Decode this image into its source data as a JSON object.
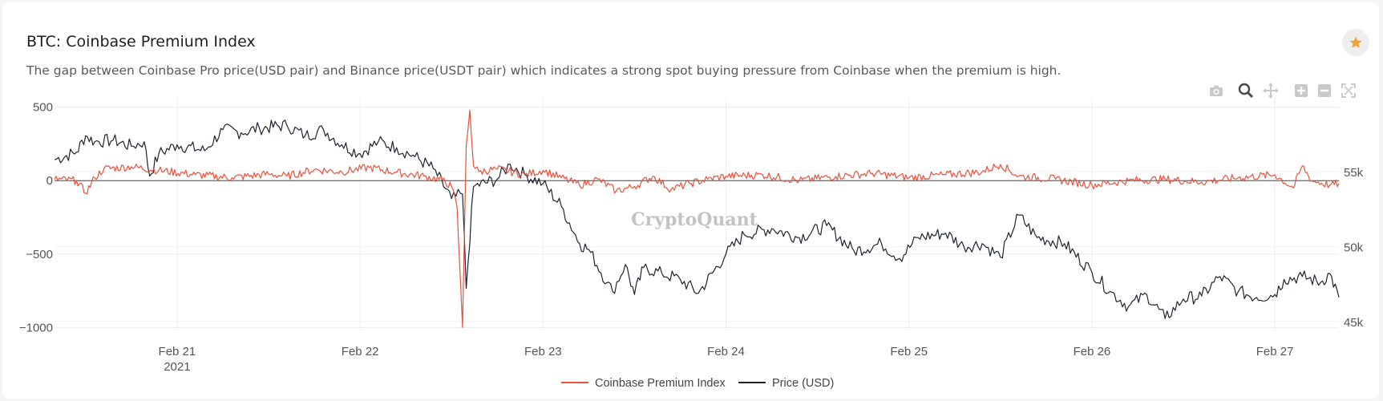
{
  "header": {
    "title": "BTC: Coinbase Premium Index",
    "subtitle": "The gap between Coinbase Pro price(USD pair) and Binance price(USDT pair) which indicates a strong spot buying pressure from Coinbase when the premium is high."
  },
  "icons": {
    "star": "star-icon",
    "toolbar": [
      "camera-icon",
      "zoom-icon",
      "pan-icon",
      "zoom-in-icon",
      "zoom-out-icon",
      "autoscale-icon"
    ]
  },
  "watermark": "CryptoQuant",
  "colors": {
    "premium": "#e5533c",
    "price": "#1c2430",
    "star": "#f0a23b"
  },
  "chart_data": {
    "type": "line",
    "x_axis": {
      "ticks": [
        "Feb 21",
        "Feb 22",
        "Feb 23",
        "Feb 24",
        "Feb 25",
        "Feb 26",
        "Feb 27"
      ],
      "year_label": "2021",
      "range": [
        20.33,
        27.35
      ]
    },
    "y_left": {
      "ticks": [
        "500",
        "0",
        "−500",
        "−1000"
      ],
      "tick_values": [
        500,
        0,
        -500,
        -1000
      ],
      "range": [
        -1020,
        520
      ]
    },
    "y_right": {
      "ticks": [
        "55k",
        "50k",
        "45k"
      ],
      "tick_values": [
        55000,
        50000,
        45000
      ],
      "range": [
        44400,
        59500
      ]
    },
    "grid": true,
    "legend_position": "bottom-center",
    "series": [
      {
        "name": "Coinbase Premium Index",
        "axis": "left",
        "x": [
          20.33,
          20.45,
          20.5,
          20.55,
          20.6,
          20.75,
          20.9,
          21.1,
          21.3,
          21.5,
          21.6,
          21.75,
          21.9,
          22.05,
          22.2,
          22.35,
          22.45,
          22.5,
          22.53,
          22.56,
          22.58,
          22.6,
          22.62,
          22.65,
          22.75,
          22.9,
          23.0,
          23.1,
          23.2,
          23.3,
          23.4,
          23.5,
          23.6,
          23.7,
          23.8,
          23.9,
          24.0,
          24.2,
          24.4,
          24.6,
          24.8,
          25.0,
          25.2,
          25.4,
          25.5,
          25.6,
          25.8,
          26.0,
          26.2,
          26.4,
          26.6,
          26.8,
          27.0,
          27.1,
          27.15,
          27.2,
          27.3,
          27.35
        ],
        "y": [
          10,
          0,
          -85,
          20,
          80,
          95,
          70,
          40,
          20,
          45,
          30,
          75,
          60,
          90,
          55,
          30,
          5,
          -40,
          -180,
          -1000,
          240,
          480,
          100,
          60,
          80,
          40,
          70,
          20,
          -30,
          10,
          -70,
          -40,
          30,
          -60,
          -20,
          10,
          30,
          40,
          0,
          30,
          50,
          20,
          40,
          60,
          110,
          30,
          10,
          -30,
          0,
          10,
          -10,
          20,
          40,
          -50,
          100,
          0,
          -30,
          -20
        ]
      },
      {
        "name": "Price (USD)",
        "axis": "right",
        "x": [
          20.33,
          20.45,
          20.5,
          20.55,
          20.65,
          20.75,
          20.82,
          20.85,
          20.9,
          21.0,
          21.15,
          21.25,
          21.35,
          21.45,
          21.6,
          21.7,
          21.8,
          21.9,
          22.0,
          22.1,
          22.2,
          22.3,
          22.4,
          22.5,
          22.56,
          22.58,
          22.62,
          22.75,
          22.82,
          22.9,
          23.0,
          23.1,
          23.2,
          23.25,
          23.35,
          23.38,
          23.45,
          23.5,
          23.55,
          23.65,
          23.75,
          23.85,
          24.0,
          24.1,
          24.25,
          24.4,
          24.55,
          24.7,
          24.85,
          24.95,
          25.05,
          25.2,
          25.3,
          25.4,
          25.5,
          25.6,
          25.7,
          25.85,
          26.0,
          26.1,
          26.2,
          26.3,
          26.4,
          26.5,
          26.6,
          26.7,
          26.8,
          26.9,
          27.0,
          27.05,
          27.15,
          27.25,
          27.3,
          27.35
        ],
        "y": [
          55800,
          56300,
          57400,
          57000,
          57100,
          56700,
          57000,
          54700,
          56200,
          56800,
          56400,
          57800,
          57600,
          57900,
          58100,
          57400,
          57800,
          56800,
          56200,
          57000,
          56600,
          56000,
          55200,
          53200,
          53500,
          47200,
          54000,
          54500,
          55500,
          54800,
          54200,
          52700,
          50200,
          49800,
          47600,
          47000,
          48800,
          46800,
          48600,
          48200,
          47800,
          46900,
          49500,
          50800,
          51200,
          50600,
          51400,
          49700,
          50200,
          49200,
          50600,
          50900,
          50000,
          50200,
          49300,
          52100,
          50600,
          50200,
          48300,
          47000,
          46000,
          46800,
          45200,
          46500,
          46700,
          48000,
          47000,
          46600,
          46800,
          47800,
          48000,
          47600,
          48200,
          46600
        ]
      }
    ]
  }
}
